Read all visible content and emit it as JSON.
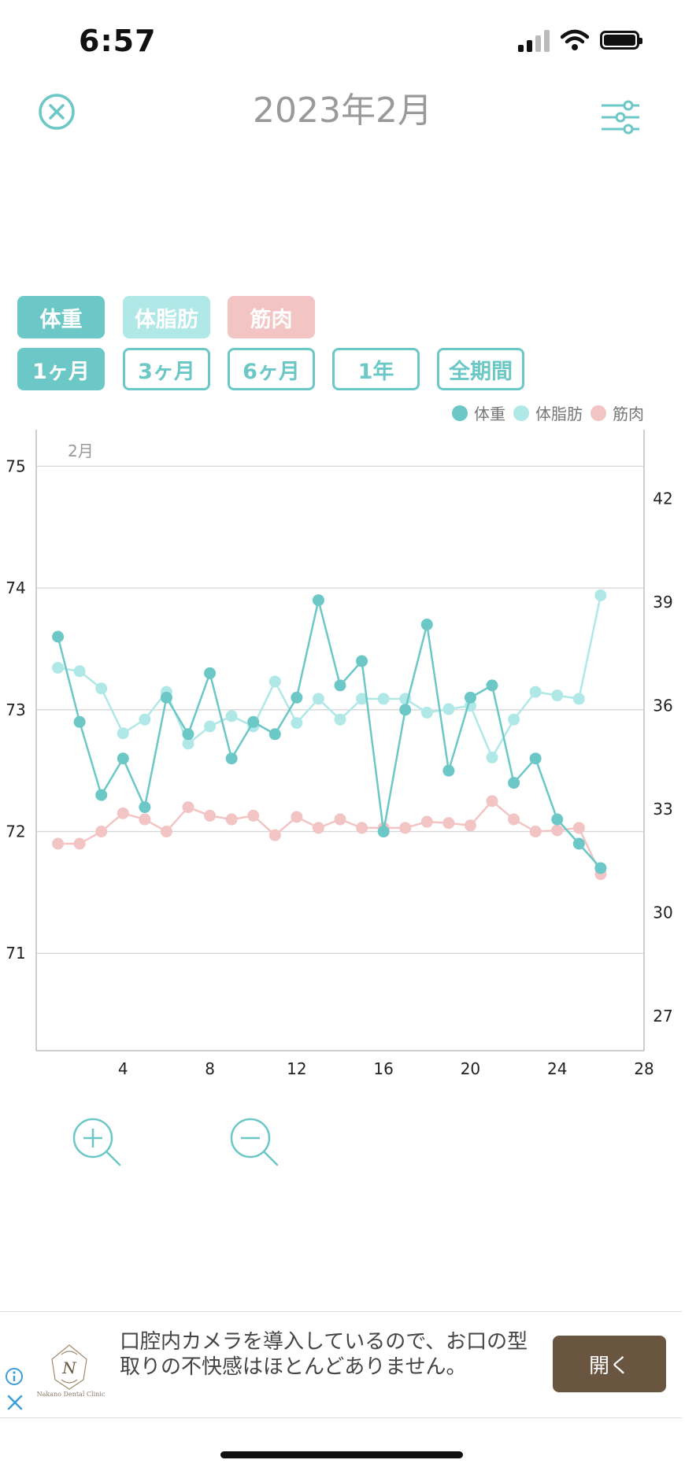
{
  "status_bar": {
    "time": "6:57"
  },
  "header": {
    "title": "2023年2月"
  },
  "series_tabs": [
    {
      "label": "体重",
      "color": "#6cc8c6"
    },
    {
      "label": "体脂肪",
      "color": "#b0e8e8"
    },
    {
      "label": "筋肉",
      "color": "#f3c4c4"
    }
  ],
  "period_tabs": [
    {
      "label": "1ヶ月",
      "active": true
    },
    {
      "label": "3ヶ月",
      "active": false
    },
    {
      "label": "6ヶ月",
      "active": false
    },
    {
      "label": "1年",
      "active": false
    },
    {
      "label": "全期間",
      "active": false
    }
  ],
  "chart_data": {
    "type": "line",
    "month_label": "2月",
    "legend_position": "top-right",
    "grid": true,
    "x_ticks": [
      4,
      8,
      12,
      16,
      20,
      24,
      28
    ],
    "xlim": [
      0,
      28
    ],
    "y_left": {
      "ticks": [
        71,
        72,
        73,
        74,
        75
      ],
      "lim": [
        70.2,
        75.3
      ]
    },
    "y_right": {
      "ticks": [
        27,
        30,
        33,
        36,
        39,
        42
      ],
      "lim": [
        26.0,
        44.0
      ]
    },
    "series": [
      {
        "name": "体重",
        "axis": "left",
        "color": "#6cc8c6",
        "x": [
          1,
          2,
          3,
          4,
          5,
          6,
          7,
          8,
          9,
          10,
          11,
          12,
          13,
          14,
          15,
          16,
          17,
          18,
          19,
          20,
          21,
          22,
          23,
          24,
          25,
          26
        ],
        "values": [
          73.6,
          72.9,
          72.3,
          72.6,
          72.2,
          73.1,
          72.8,
          73.3,
          72.6,
          72.9,
          72.8,
          73.1,
          73.9,
          73.2,
          73.4,
          72.0,
          73.0,
          73.7,
          72.5,
          73.1,
          73.2,
          72.4,
          72.6,
          72.1,
          71.9,
          71.7
        ]
      },
      {
        "name": "体脂肪",
        "axis": "right",
        "color": "#b0e8e8",
        "x": [
          1,
          2,
          3,
          4,
          5,
          6,
          7,
          8,
          9,
          10,
          11,
          12,
          13,
          14,
          15,
          16,
          17,
          18,
          19,
          20,
          21,
          22,
          23,
          24,
          25,
          26
        ],
        "values": [
          37.1,
          37.0,
          36.5,
          35.2,
          35.6,
          36.4,
          34.9,
          35.4,
          35.7,
          35.4,
          36.7,
          35.5,
          36.2,
          35.6,
          36.2,
          36.2,
          36.2,
          35.8,
          35.9,
          36.0,
          34.5,
          35.6,
          36.4,
          36.3,
          36.2,
          39.2
        ]
      },
      {
        "name": "筋肉",
        "axis": "left",
        "color": "#f3c4c4",
        "x": [
          1,
          2,
          3,
          4,
          5,
          6,
          7,
          8,
          9,
          10,
          11,
          12,
          13,
          14,
          15,
          16,
          17,
          18,
          19,
          20,
          21,
          22,
          23,
          24,
          25,
          26
        ],
        "values": [
          71.9,
          71.9,
          72.0,
          72.15,
          72.1,
          72.0,
          72.2,
          72.13,
          72.1,
          72.13,
          71.97,
          72.12,
          72.03,
          72.1,
          72.03,
          72.03,
          72.03,
          72.08,
          72.07,
          72.05,
          72.25,
          72.1,
          72.0,
          72.01,
          72.03,
          71.65
        ]
      }
    ]
  },
  "zoom": {
    "in_icon": "zoom-in-icon",
    "out_icon": "zoom-out-icon"
  },
  "ad": {
    "logo_text": "Nakano Dental Clinic",
    "text": "口腔内カメラを導入しているので、お口の型取りの不快感はほとんどありません。",
    "open_label": "開く"
  }
}
